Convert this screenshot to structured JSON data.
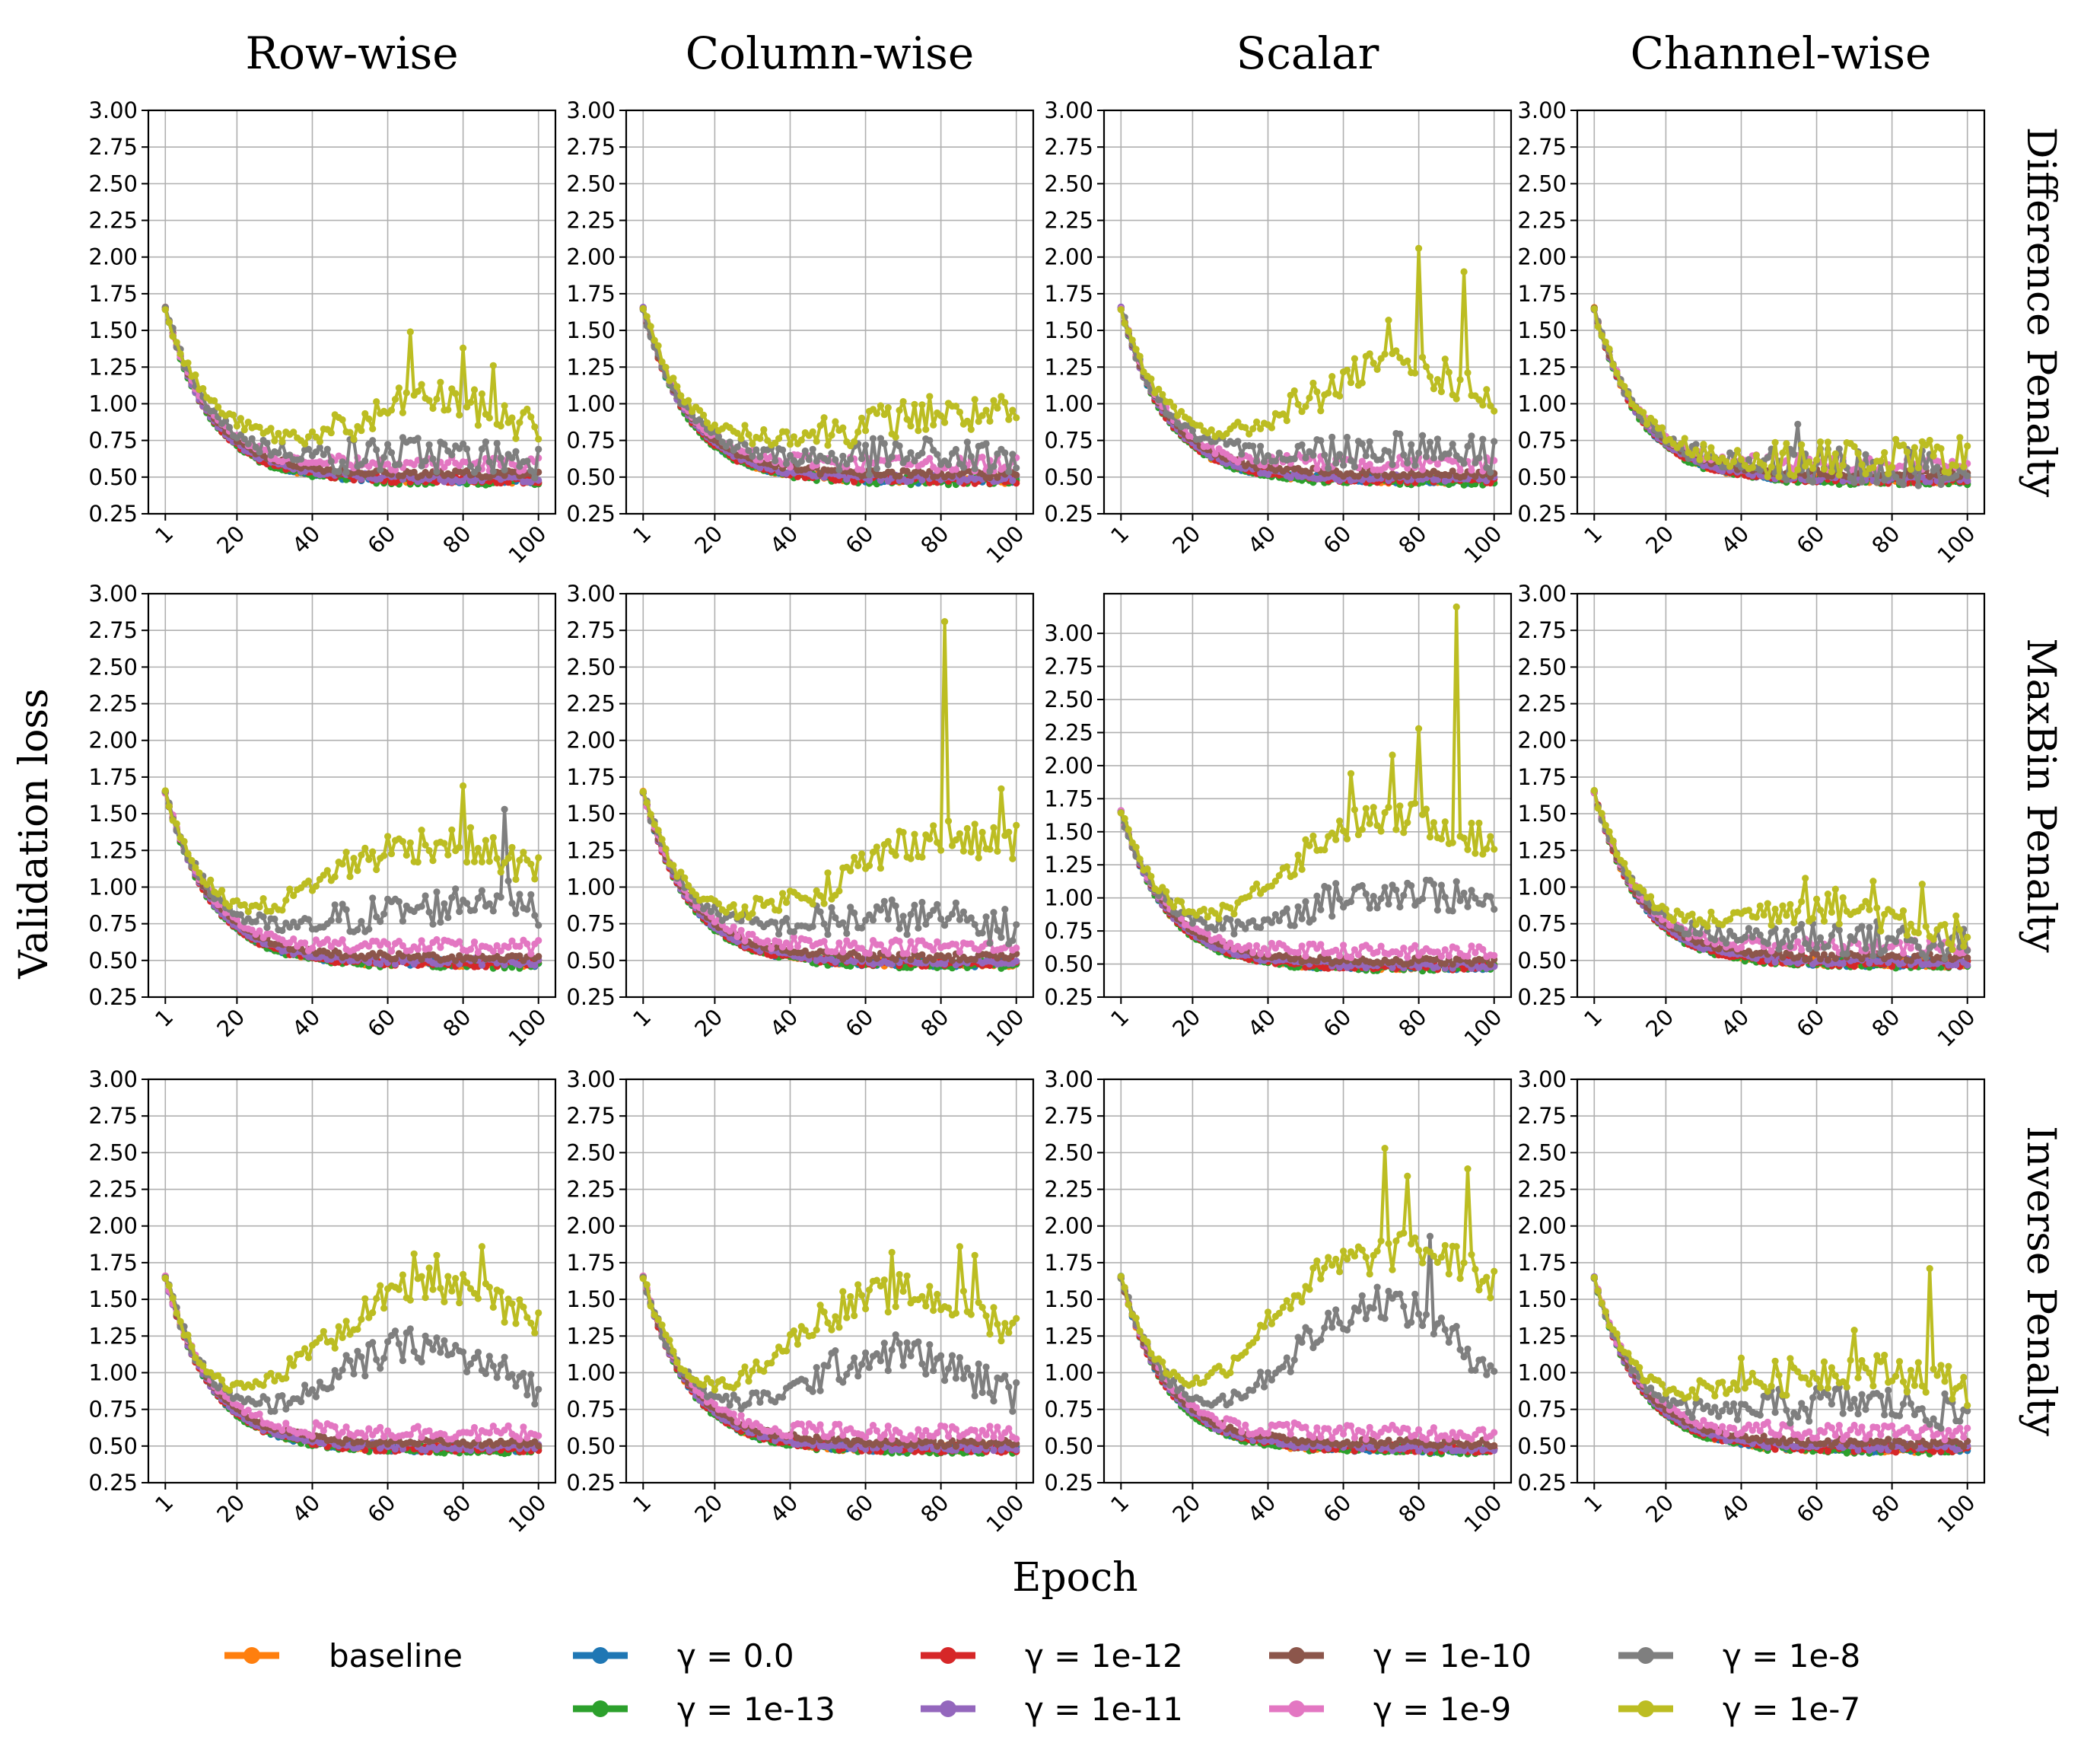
{
  "figure": {
    "column_titles": [
      "Row-wise",
      "Column-wise",
      "Scalar",
      "Channel-wise"
    ],
    "row_titles": [
      "Difference Penalty",
      "MaxBin Penalty",
      "Inverse Penalty"
    ],
    "xlabel": "Epoch",
    "ylabel": "Validation loss"
  },
  "legend": [
    {
      "label": "baseline",
      "color": "#ff7f0e"
    },
    {
      "label": "γ = 0.0",
      "color": "#1f77b4"
    },
    {
      "label": "γ = 1e-12",
      "color": "#d62728"
    },
    {
      "label": "γ = 1e-10",
      "color": "#8c564b"
    },
    {
      "label": "γ = 1e-8",
      "color": "#7f7f7f"
    },
    {
      "label": "γ = 1e-13",
      "color": "#2ca02c"
    },
    {
      "label": "γ = 1e-11",
      "color": "#9467bd"
    },
    {
      "label": "γ = 1e-9",
      "color": "#e377c2"
    },
    {
      "label": "γ = 1e-7",
      "color": "#bcbd22"
    }
  ],
  "chart_data": {
    "type": "line",
    "grid": true,
    "legend_position": "bottom",
    "x_ticks": [
      "1",
      "20",
      "40",
      "60",
      "80",
      "100"
    ],
    "xlim": [
      1,
      100
    ],
    "series_names": [
      "baseline",
      "γ = 0.0",
      "γ = 1e-13",
      "γ = 1e-12",
      "γ = 1e-11",
      "γ = 1e-10",
      "γ = 1e-9",
      "γ = 1e-8",
      "γ = 1e-7"
    ],
    "series_colors": [
      "#ff7f0e",
      "#1f77b4",
      "#2ca02c",
      "#d62728",
      "#9467bd",
      "#8c564b",
      "#e377c2",
      "#7f7f7f",
      "#bcbd22"
    ],
    "series_final_values": [
      0.48,
      0.48,
      0.47,
      0.48,
      0.49,
      0.52,
      0.55,
      0.65,
      0.9
    ],
    "panels": [
      {
        "row": "Difference Penalty",
        "column": "Row-wise",
        "ylim": [
          0.25,
          3.0
        ],
        "y_ticks": [
          "0.25",
          "0.50",
          "0.75",
          "1.00",
          "1.25",
          "1.50",
          "1.75",
          "2.00",
          "2.25",
          "2.50",
          "2.75",
          "3.00"
        ],
        "late_values": {
          "γ = 1e-7": [
            0.65,
            0.68,
            0.7,
            0.75,
            0.8,
            0.95,
            1.05,
            1.0,
            0.9,
            0.85
          ],
          "γ = 1e-8": [
            0.55,
            0.57,
            0.6,
            0.62,
            0.63,
            0.65,
            0.66,
            0.64,
            0.63,
            0.62
          ]
        },
        "peak_values": {
          "γ = 1e-7": [
            [
              66,
              1.49
            ],
            [
              80,
              1.38
            ],
            [
              88,
              1.26
            ]
          ]
        }
      },
      {
        "row": "Difference Penalty",
        "column": "Column-wise",
        "ylim": [
          0.25,
          3.0
        ],
        "y_ticks": [
          "0.25",
          "0.50",
          "0.75",
          "1.00",
          "1.25",
          "1.50",
          "1.75",
          "2.00",
          "2.25",
          "2.50",
          "2.75",
          "3.00"
        ],
        "late_values": {
          "γ = 1e-7": [
            0.62,
            0.65,
            0.7,
            0.75,
            0.8,
            0.85,
            0.9,
            0.92,
            0.92,
            0.9
          ],
          "γ = 1e-8": [
            0.55,
            0.57,
            0.58,
            0.6,
            0.62,
            0.63,
            0.64,
            0.65,
            0.63,
            0.62
          ]
        },
        "peak_values": {
          "γ = 1e-7": [
            [
              77,
              1.05
            ],
            [
              96,
              1.05
            ]
          ]
        }
      },
      {
        "row": "Difference Penalty",
        "column": "Scalar",
        "ylim": [
          0.25,
          3.0
        ],
        "y_ticks": [
          "0.25",
          "0.50",
          "0.75",
          "1.00",
          "1.25",
          "1.50",
          "1.75",
          "2.00",
          "2.25",
          "2.50",
          "2.75",
          "3.00"
        ],
        "late_values": {
          "γ = 1e-7": [
            0.62,
            0.66,
            0.72,
            0.85,
            1.0,
            1.15,
            1.25,
            1.25,
            1.15,
            1.0
          ],
          "γ = 1e-8": [
            0.56,
            0.58,
            0.6,
            0.62,
            0.65,
            0.68,
            0.7,
            0.7,
            0.68,
            0.65
          ]
        },
        "peak_values": {
          "γ = 1e-7": [
            [
              80,
              2.06
            ],
            [
              92,
              1.9
            ],
            [
              72,
              1.57
            ]
          ]
        }
      },
      {
        "row": "Difference Penalty",
        "column": "Channel-wise",
        "ylim": [
          0.25,
          3.0
        ],
        "y_ticks": [
          "0.25",
          "0.50",
          "0.75",
          "1.00",
          "1.25",
          "1.50",
          "1.75",
          "2.00",
          "2.25",
          "2.50",
          "2.75",
          "3.00"
        ],
        "late_values": {
          "γ = 1e-7": [
            0.55,
            0.56,
            0.57,
            0.58,
            0.6,
            0.61,
            0.62,
            0.63,
            0.64,
            0.65
          ],
          "γ = 1e-8": [
            0.53,
            0.54,
            0.55,
            0.55,
            0.56,
            0.56,
            0.57,
            0.57,
            0.56,
            0.55
          ]
        },
        "peak_values": {
          "γ = 1e-8": [
            [
              55,
              0.86
            ]
          ],
          "γ = 1e-7": [
            [
              98,
              0.77
            ]
          ]
        }
      },
      {
        "row": "MaxBin Penalty",
        "column": "Row-wise",
        "ylim": [
          0.25,
          3.0
        ],
        "y_ticks": [
          "0.25",
          "0.50",
          "0.75",
          "1.00",
          "1.25",
          "1.50",
          "1.75",
          "2.00",
          "2.25",
          "2.50",
          "2.75",
          "3.00"
        ],
        "late_values": {
          "γ = 1e-7": [
            0.62,
            0.68,
            0.8,
            1.0,
            1.15,
            1.25,
            1.3,
            1.3,
            1.2,
            1.1
          ],
          "γ = 1e-8": [
            0.57,
            0.6,
            0.64,
            0.7,
            0.78,
            0.82,
            0.85,
            0.9,
            0.95,
            0.8
          ]
        },
        "peak_values": {
          "γ = 1e-7": [
            [
              80,
              1.69
            ]
          ],
          "γ = 1e-8": [
            [
              91,
              1.53
            ]
          ]
        }
      },
      {
        "row": "MaxBin Penalty",
        "column": "Column-wise",
        "ylim": [
          0.25,
          3.0
        ],
        "y_ticks": [
          "0.25",
          "0.50",
          "0.75",
          "1.00",
          "1.25",
          "1.50",
          "1.75",
          "2.00",
          "2.25",
          "2.50",
          "2.75",
          "3.00"
        ],
        "late_values": {
          "γ = 1e-7": [
            0.62,
            0.68,
            0.78,
            0.9,
            1.0,
            1.15,
            1.3,
            1.35,
            1.3,
            1.3
          ],
          "γ = 1e-8": [
            0.58,
            0.62,
            0.66,
            0.7,
            0.75,
            0.78,
            0.8,
            0.78,
            0.75,
            0.72
          ]
        },
        "peak_values": {
          "γ = 1e-7": [
            [
              81,
              2.81
            ],
            [
              96,
              1.67
            ]
          ]
        }
      },
      {
        "row": "MaxBin Penalty",
        "column": "Scalar",
        "ylim": [
          0.25,
          3.3
        ],
        "y_ticks": [
          "0.25",
          "0.50",
          "0.75",
          "1.00",
          "1.25",
          "1.50",
          "1.75",
          "2.00",
          "2.25",
          "2.50",
          "2.75",
          "3.00"
        ],
        "late_values": {
          "γ = 1e-7": [
            0.62,
            0.7,
            0.85,
            1.1,
            1.35,
            1.55,
            1.6,
            1.6,
            1.5,
            1.4
          ],
          "γ = 1e-8": [
            0.57,
            0.62,
            0.7,
            0.8,
            0.92,
            1.0,
            1.05,
            1.05,
            1.0,
            0.95
          ]
        },
        "peak_values": {
          "γ = 1e-7": [
            [
              90,
              3.2
            ],
            [
              80,
              2.28
            ],
            [
              73,
              2.08
            ],
            [
              62,
              1.94
            ]
          ]
        }
      },
      {
        "row": "MaxBin Penalty",
        "column": "Channel-wise",
        "ylim": [
          0.25,
          3.0
        ],
        "y_ticks": [
          "0.25",
          "0.50",
          "0.75",
          "1.00",
          "1.25",
          "1.50",
          "1.75",
          "2.00",
          "2.25",
          "2.50",
          "2.75",
          "3.00"
        ],
        "late_values": {
          "γ = 1e-7": [
            0.6,
            0.62,
            0.68,
            0.78,
            0.85,
            0.88,
            0.85,
            0.8,
            0.72,
            0.68
          ],
          "γ = 1e-8": [
            0.56,
            0.58,
            0.6,
            0.63,
            0.65,
            0.66,
            0.65,
            0.64,
            0.62,
            0.6
          ]
        },
        "peak_values": {
          "γ = 1e-7": [
            [
              57,
              1.06
            ],
            [
              75,
              1.04
            ],
            [
              88,
              1.02
            ]
          ]
        }
      },
      {
        "row": "Inverse Penalty",
        "column": "Row-wise",
        "ylim": [
          0.25,
          3.0
        ],
        "y_ticks": [
          "0.25",
          "0.50",
          "0.75",
          "1.00",
          "1.25",
          "1.50",
          "1.75",
          "2.00",
          "2.25",
          "2.50",
          "2.75",
          "3.00"
        ],
        "late_values": {
          "γ = 1e-7": [
            0.6,
            0.7,
            0.9,
            1.15,
            1.35,
            1.5,
            1.6,
            1.55,
            1.45,
            1.3
          ],
          "γ = 1e-8": [
            0.56,
            0.6,
            0.7,
            0.85,
            1.0,
            1.15,
            1.2,
            1.1,
            1.0,
            0.9
          ]
        },
        "peak_values": {
          "γ = 1e-7": [
            [
              85,
              1.86
            ],
            [
              67,
              1.81
            ],
            [
              73,
              1.8
            ]
          ]
        }
      },
      {
        "row": "Inverse Penalty",
        "column": "Column-wise",
        "ylim": [
          0.25,
          3.0
        ],
        "y_ticks": [
          "0.25",
          "0.50",
          "0.75",
          "1.00",
          "1.25",
          "1.50",
          "1.75",
          "2.00",
          "2.25",
          "2.50",
          "2.75",
          "3.00"
        ],
        "late_values": {
          "γ = 1e-7": [
            0.6,
            0.72,
            0.95,
            1.2,
            1.4,
            1.5,
            1.55,
            1.5,
            1.4,
            1.3
          ],
          "γ = 1e-8": [
            0.56,
            0.62,
            0.72,
            0.85,
            1.0,
            1.1,
            1.15,
            1.05,
            0.95,
            0.85
          ]
        },
        "peak_values": {
          "γ = 1e-7": [
            [
              67,
              1.82
            ],
            [
              85,
              1.86
            ],
            [
              89,
              1.8
            ]
          ]
        }
      },
      {
        "row": "Inverse Penalty",
        "column": "Scalar",
        "ylim": [
          0.25,
          3.0
        ],
        "y_ticks": [
          "0.25",
          "0.50",
          "0.75",
          "1.00",
          "1.25",
          "1.50",
          "1.75",
          "2.00",
          "2.25",
          "2.50",
          "2.75",
          "3.00"
        ],
        "late_values": {
          "γ = 1e-7": [
            0.62,
            0.75,
            1.0,
            1.35,
            1.6,
            1.75,
            1.8,
            1.85,
            1.75,
            1.6
          ],
          "γ = 1e-8": [
            0.56,
            0.62,
            0.75,
            0.95,
            1.2,
            1.4,
            1.5,
            1.4,
            1.2,
            1.05
          ]
        },
        "peak_values": {
          "γ = 1e-7": [
            [
              71,
              2.53
            ],
            [
              77,
              2.34
            ],
            [
              93,
              2.39
            ]
          ],
          "γ = 1e-8": [
            [
              83,
              1.93
            ]
          ]
        }
      },
      {
        "row": "Inverse Penalty",
        "column": "Channel-wise",
        "ylim": [
          0.25,
          3.0
        ],
        "y_ticks": [
          "0.25",
          "0.50",
          "0.75",
          "1.00",
          "1.25",
          "1.50",
          "1.75",
          "2.00",
          "2.25",
          "2.50",
          "2.75",
          "3.00"
        ],
        "late_values": {
          "γ = 1e-7": [
            0.6,
            0.7,
            0.82,
            0.9,
            0.95,
            1.0,
            1.02,
            1.0,
            0.98,
            0.9
          ],
          "γ = 1e-8": [
            0.55,
            0.6,
            0.65,
            0.7,
            0.75,
            0.78,
            0.8,
            0.78,
            0.75,
            0.7
          ]
        },
        "peak_values": {
          "γ = 1e-7": [
            [
              90,
              1.71
            ],
            [
              70,
              1.29
            ],
            [
              40,
              1.1
            ]
          ]
        }
      }
    ]
  }
}
